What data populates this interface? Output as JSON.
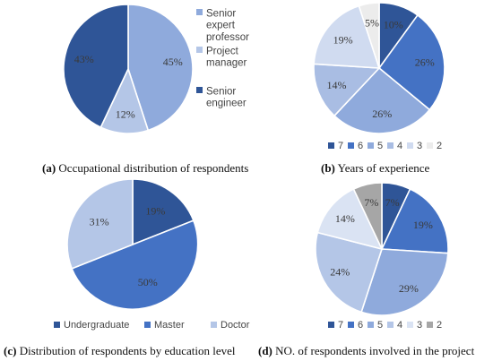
{
  "chart_data": [
    {
      "type": "pie",
      "panel_label": "(a)",
      "caption": "Occupational distribution of respondents",
      "categories": [
        "Senior expert professor",
        "Project manager",
        "Senior engineer"
      ],
      "legend_lines": [
        [
          "Senior",
          "expert",
          "professor"
        ],
        [
          "Project",
          "manager"
        ],
        [
          "Senior",
          "engineer"
        ]
      ],
      "values": [
        45,
        12,
        43
      ],
      "labels": [
        "45%",
        "12%",
        "43%"
      ],
      "colors": [
        "#8faadc",
        "#b4c6e7",
        "#2f5597"
      ],
      "legend_position": "right"
    },
    {
      "type": "pie",
      "panel_label": "(b)",
      "caption": "Years of experience",
      "categories": [
        "7",
        "6",
        "5",
        "4",
        "3",
        "2"
      ],
      "values": [
        10,
        26,
        26,
        14,
        19,
        5
      ],
      "labels": [
        "10%",
        "26%",
        "26%",
        "14%",
        "19%",
        "5%"
      ],
      "colors": [
        "#2f5597",
        "#4472c4",
        "#8faadc",
        "#a9bde3",
        "#d0dbf0",
        "#ececec"
      ],
      "legend_position": "bottom"
    },
    {
      "type": "pie",
      "panel_label": "(c)",
      "caption": "Distribution of respondents by education level",
      "categories": [
        "Undergraduate",
        "Master",
        "Doctor"
      ],
      "values": [
        19,
        50,
        31
      ],
      "labels": [
        "19%",
        "50%",
        "31%"
      ],
      "colors": [
        "#2f5597",
        "#4472c4",
        "#b4c6e7"
      ],
      "legend_position": "bottom"
    },
    {
      "type": "pie",
      "panel_label": "(d)",
      "caption": "NO. of respondents involved in the project",
      "categories": [
        "7",
        "6",
        "5",
        "4",
        "3",
        "2"
      ],
      "values": [
        7,
        19,
        29,
        24,
        14,
        7
      ],
      "labels": [
        "7%",
        "19%",
        "29%",
        "24%",
        "14%",
        "7%"
      ],
      "colors": [
        "#2f5597",
        "#4472c4",
        "#8faadc",
        "#b4c6e7",
        "#dae3f3",
        "#a6a6a6"
      ],
      "legend_position": "bottom"
    }
  ]
}
